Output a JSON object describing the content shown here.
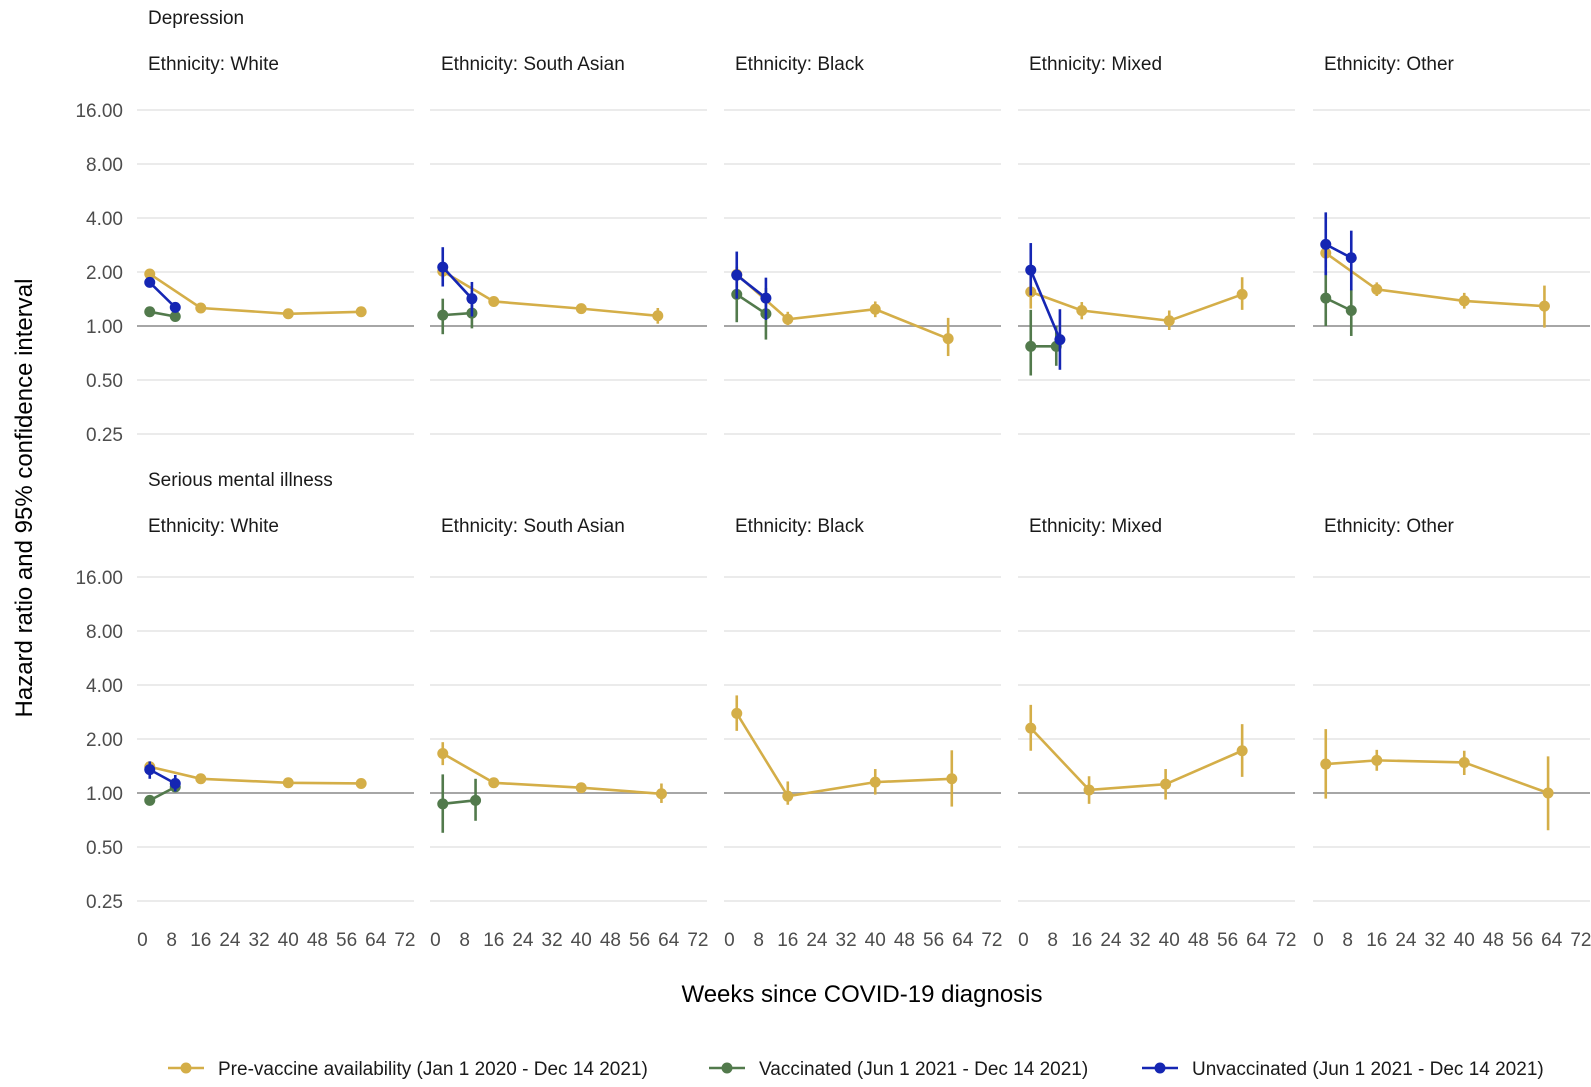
{
  "chart_data": {
    "type": "line",
    "xlabel": "Weeks since COVID-19 diagnosis",
    "ylabel": "Hazard ratio and 95% confidence interval",
    "y_scale": "log2",
    "y_ticks": [
      "0.25",
      "0.50",
      "1.00",
      "2.00",
      "4.00",
      "8.00",
      "16.00"
    ],
    "y_tick_values": [
      0.25,
      0.5,
      1,
      2,
      4,
      8,
      16
    ],
    "x_ticks": [
      "0",
      "8",
      "16",
      "24",
      "32",
      "40",
      "48",
      "56",
      "64",
      "72"
    ],
    "x_tick_values": [
      0,
      8,
      16,
      24,
      32,
      40,
      48,
      56,
      64,
      72
    ],
    "reference_line": 1.0,
    "grid": true,
    "legend_position": "bottom",
    "legend": [
      {
        "key": "pre",
        "name": "Pre-vaccine availability (Jan 1 2020 - Dec 14 2021)",
        "color": "#d4ae48"
      },
      {
        "key": "vac",
        "name": "Vaccinated (Jun 1 2021 - Dec 14 2021)",
        "color": "#527a4c"
      },
      {
        "key": "unvac",
        "name": "Unvaccinated (Jun 1 2021 - Dec 14 2021)",
        "color": "#1526b3"
      }
    ],
    "rows": [
      {
        "outcome": "Depression",
        "panels": [
          {
            "title": "Ethnicity: White",
            "series": [
              {
                "key": "pre",
                "points": [
                  {
                    "x": 2,
                    "y": 1.95,
                    "lo": 1.88,
                    "hi": 2.02
                  },
                  {
                    "x": 16,
                    "y": 1.26,
                    "lo": 1.22,
                    "hi": 1.3
                  },
                  {
                    "x": 40,
                    "y": 1.17,
                    "lo": 1.14,
                    "hi": 1.2
                  },
                  {
                    "x": 60,
                    "y": 1.2,
                    "lo": 1.16,
                    "hi": 1.24
                  }
                ]
              },
              {
                "key": "vac",
                "points": [
                  {
                    "x": 2,
                    "y": 1.2,
                    "lo": 1.13,
                    "hi": 1.27
                  },
                  {
                    "x": 9,
                    "y": 1.13,
                    "lo": 1.07,
                    "hi": 1.2
                  }
                ]
              },
              {
                "key": "unvac",
                "points": [
                  {
                    "x": 2,
                    "y": 1.75,
                    "lo": 1.65,
                    "hi": 1.86
                  },
                  {
                    "x": 9,
                    "y": 1.27,
                    "lo": 1.19,
                    "hi": 1.36
                  }
                ]
              }
            ]
          },
          {
            "title": "Ethnicity: South Asian",
            "series": [
              {
                "key": "pre",
                "points": [
                  {
                    "x": 2,
                    "y": 2.02,
                    "lo": 1.85,
                    "hi": 2.2
                  },
                  {
                    "x": 16,
                    "y": 1.37,
                    "lo": 1.29,
                    "hi": 1.46
                  },
                  {
                    "x": 40,
                    "y": 1.25,
                    "lo": 1.19,
                    "hi": 1.31
                  },
                  {
                    "x": 61,
                    "y": 1.14,
                    "lo": 1.03,
                    "hi": 1.26
                  }
                ]
              },
              {
                "key": "vac",
                "points": [
                  {
                    "x": 2,
                    "y": 1.15,
                    "lo": 0.9,
                    "hi": 1.42
                  },
                  {
                    "x": 10,
                    "y": 1.18,
                    "lo": 0.97,
                    "hi": 1.45
                  }
                ]
              },
              {
                "key": "unvac",
                "points": [
                  {
                    "x": 2,
                    "y": 2.13,
                    "lo": 1.66,
                    "hi": 2.75
                  },
                  {
                    "x": 10,
                    "y": 1.42,
                    "lo": 1.13,
                    "hi": 1.76
                  }
                ]
              }
            ]
          },
          {
            "title": "Ethnicity: Black",
            "series": [
              {
                "key": "pre",
                "points": [
                  {
                    "x": 2,
                    "y": 1.94,
                    "lo": 1.65,
                    "hi": 2.13
                  },
                  {
                    "x": 16,
                    "y": 1.09,
                    "lo": 1.01,
                    "hi": 1.2
                  },
                  {
                    "x": 40,
                    "y": 1.24,
                    "lo": 1.12,
                    "hi": 1.37
                  },
                  {
                    "x": 60,
                    "y": 0.85,
                    "lo": 0.68,
                    "hi": 1.11
                  }
                ]
              },
              {
                "key": "vac",
                "points": [
                  {
                    "x": 2,
                    "y": 1.5,
                    "lo": 1.05,
                    "hi": 2.15
                  },
                  {
                    "x": 10,
                    "y": 1.17,
                    "lo": 0.84,
                    "hi": 1.63
                  }
                ]
              },
              {
                "key": "unvac",
                "points": [
                  {
                    "x": 2,
                    "y": 1.92,
                    "lo": 1.42,
                    "hi": 2.6
                  },
                  {
                    "x": 10,
                    "y": 1.43,
                    "lo": 1.08,
                    "hi": 1.86
                  }
                ]
              }
            ]
          },
          {
            "title": "Ethnicity: Mixed",
            "series": [
              {
                "key": "pre",
                "points": [
                  {
                    "x": 2,
                    "y": 1.55,
                    "lo": 1.25,
                    "hi": 1.9
                  },
                  {
                    "x": 16,
                    "y": 1.22,
                    "lo": 1.09,
                    "hi": 1.36
                  },
                  {
                    "x": 40,
                    "y": 1.07,
                    "lo": 0.95,
                    "hi": 1.22
                  },
                  {
                    "x": 60,
                    "y": 1.5,
                    "lo": 1.23,
                    "hi": 1.87
                  }
                ]
              },
              {
                "key": "vac",
                "points": [
                  {
                    "x": 2,
                    "y": 0.77,
                    "lo": 0.53,
                    "hi": 1.23
                  },
                  {
                    "x": 9,
                    "y": 0.77,
                    "lo": 0.6,
                    "hi": 1.0
                  }
                ]
              },
              {
                "key": "unvac",
                "points": [
                  {
                    "x": 2,
                    "y": 2.05,
                    "lo": 1.48,
                    "hi": 2.9
                  },
                  {
                    "x": 10,
                    "y": 0.84,
                    "lo": 0.57,
                    "hi": 1.24
                  }
                ]
              }
            ]
          },
          {
            "title": "Ethnicity: Other",
            "series": [
              {
                "key": "pre",
                "points": [
                  {
                    "x": 2,
                    "y": 2.55,
                    "lo": 2.12,
                    "hi": 3.05
                  },
                  {
                    "x": 16,
                    "y": 1.6,
                    "lo": 1.47,
                    "hi": 1.75
                  },
                  {
                    "x": 40,
                    "y": 1.38,
                    "lo": 1.25,
                    "hi": 1.53
                  },
                  {
                    "x": 62,
                    "y": 1.29,
                    "lo": 0.98,
                    "hi": 1.68
                  }
                ]
              },
              {
                "key": "vac",
                "points": [
                  {
                    "x": 2,
                    "y": 1.43,
                    "lo": 1.0,
                    "hi": 2.0
                  },
                  {
                    "x": 9,
                    "y": 1.22,
                    "lo": 0.88,
                    "hi": 1.6
                  }
                ]
              },
              {
                "key": "unvac",
                "points": [
                  {
                    "x": 2,
                    "y": 2.85,
                    "lo": 1.92,
                    "hi": 4.3
                  },
                  {
                    "x": 9,
                    "y": 2.4,
                    "lo": 1.58,
                    "hi": 3.4
                  }
                ]
              }
            ]
          }
        ]
      },
      {
        "outcome": "Serious mental illness",
        "panels": [
          {
            "title": "Ethnicity: White",
            "series": [
              {
                "key": "pre",
                "points": [
                  {
                    "x": 2,
                    "y": 1.4,
                    "lo": 1.33,
                    "hi": 1.48
                  },
                  {
                    "x": 16,
                    "y": 1.2,
                    "lo": 1.16,
                    "hi": 1.24
                  },
                  {
                    "x": 40,
                    "y": 1.14,
                    "lo": 1.11,
                    "hi": 1.17
                  },
                  {
                    "x": 60,
                    "y": 1.13,
                    "lo": 1.1,
                    "hi": 1.16
                  }
                ]
              },
              {
                "key": "vac",
                "points": [
                  {
                    "x": 2,
                    "y": 0.91,
                    "lo": 0.86,
                    "hi": 0.96
                  },
                  {
                    "x": 9,
                    "y": 1.08,
                    "lo": 1.02,
                    "hi": 1.15
                  }
                ]
              },
              {
                "key": "unvac",
                "points": [
                  {
                    "x": 2,
                    "y": 1.35,
                    "lo": 1.2,
                    "hi": 1.5
                  },
                  {
                    "x": 9,
                    "y": 1.13,
                    "lo": 1.02,
                    "hi": 1.26
                  }
                ]
              }
            ]
          },
          {
            "title": "Ethnicity: South Asian",
            "series": [
              {
                "key": "pre",
                "points": [
                  {
                    "x": 2,
                    "y": 1.66,
                    "lo": 1.43,
                    "hi": 1.92
                  },
                  {
                    "x": 16,
                    "y": 1.14,
                    "lo": 1.07,
                    "hi": 1.22
                  },
                  {
                    "x": 40,
                    "y": 1.07,
                    "lo": 1.01,
                    "hi": 1.14
                  },
                  {
                    "x": 62,
                    "y": 0.99,
                    "lo": 0.88,
                    "hi": 1.13
                  }
                ]
              },
              {
                "key": "vac",
                "points": [
                  {
                    "x": 2,
                    "y": 0.87,
                    "lo": 0.6,
                    "hi": 1.27
                  },
                  {
                    "x": 11,
                    "y": 0.91,
                    "lo": 0.7,
                    "hi": 1.2
                  }
                ]
              }
            ]
          },
          {
            "title": "Ethnicity: Black",
            "series": [
              {
                "key": "pre",
                "points": [
                  {
                    "x": 2,
                    "y": 2.78,
                    "lo": 2.22,
                    "hi": 3.5
                  },
                  {
                    "x": 16,
                    "y": 0.96,
                    "lo": 0.86,
                    "hi": 1.16
                  },
                  {
                    "x": 40,
                    "y": 1.15,
                    "lo": 0.98,
                    "hi": 1.36
                  },
                  {
                    "x": 61,
                    "y": 1.2,
                    "lo": 0.84,
                    "hi": 1.73
                  }
                ]
              }
            ]
          },
          {
            "title": "Ethnicity: Mixed",
            "series": [
              {
                "key": "pre",
                "points": [
                  {
                    "x": 2,
                    "y": 2.3,
                    "lo": 1.72,
                    "hi": 3.1
                  },
                  {
                    "x": 18,
                    "y": 1.04,
                    "lo": 0.87,
                    "hi": 1.24
                  },
                  {
                    "x": 39,
                    "y": 1.12,
                    "lo": 0.92,
                    "hi": 1.36
                  },
                  {
                    "x": 60,
                    "y": 1.72,
                    "lo": 1.23,
                    "hi": 2.42
                  }
                ]
              }
            ]
          },
          {
            "title": "Ethnicity: Other",
            "series": [
              {
                "key": "pre",
                "points": [
                  {
                    "x": 2,
                    "y": 1.45,
                    "lo": 0.93,
                    "hi": 2.27
                  },
                  {
                    "x": 16,
                    "y": 1.52,
                    "lo": 1.33,
                    "hi": 1.74
                  },
                  {
                    "x": 40,
                    "y": 1.48,
                    "lo": 1.26,
                    "hi": 1.72
                  },
                  {
                    "x": 63,
                    "y": 1.0,
                    "lo": 0.62,
                    "hi": 1.6
                  }
                ]
              }
            ]
          }
        ]
      }
    ]
  }
}
